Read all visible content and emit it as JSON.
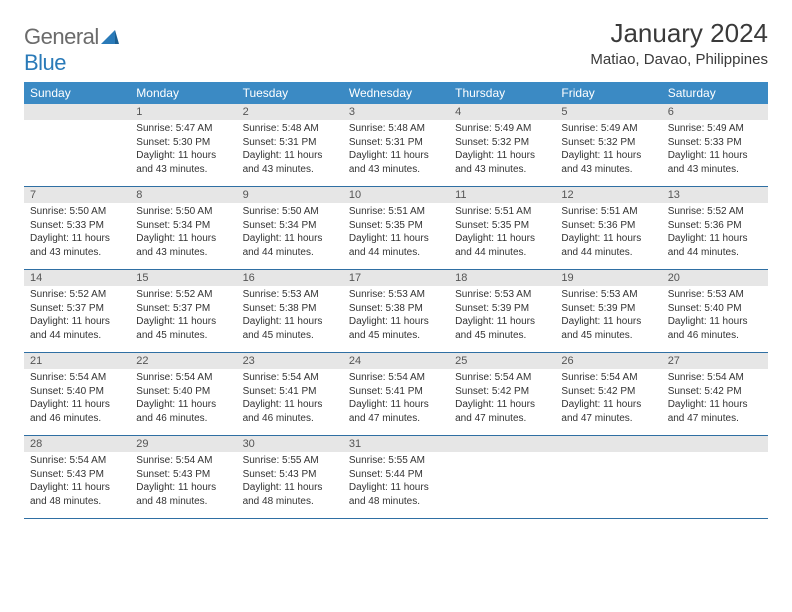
{
  "brand": {
    "text_gray": "General",
    "text_blue": "Blue"
  },
  "title": "January 2024",
  "location": "Matiao, Davao, Philippines",
  "colors": {
    "header_bg": "#3b8ac4",
    "header_text": "#ffffff",
    "daynum_bg": "#e6e6e6",
    "row_border": "#2f6fa3",
    "body_text": "#333333",
    "logo_gray": "#6b6b6b",
    "logo_blue": "#2a7ab8",
    "page_bg": "#ffffff"
  },
  "typography": {
    "title_fontsize": 26,
    "location_fontsize": 15,
    "dayheader_fontsize": 12,
    "daynum_fontsize": 11,
    "body_fontsize": 10
  },
  "day_labels": [
    "Sunday",
    "Monday",
    "Tuesday",
    "Wednesday",
    "Thursday",
    "Friday",
    "Saturday"
  ],
  "weeks": [
    [
      {
        "num": "",
        "sunrise": "",
        "sunset": "",
        "daylight": ""
      },
      {
        "num": "1",
        "sunrise": "Sunrise: 5:47 AM",
        "sunset": "Sunset: 5:30 PM",
        "daylight": "Daylight: 11 hours and 43 minutes."
      },
      {
        "num": "2",
        "sunrise": "Sunrise: 5:48 AM",
        "sunset": "Sunset: 5:31 PM",
        "daylight": "Daylight: 11 hours and 43 minutes."
      },
      {
        "num": "3",
        "sunrise": "Sunrise: 5:48 AM",
        "sunset": "Sunset: 5:31 PM",
        "daylight": "Daylight: 11 hours and 43 minutes."
      },
      {
        "num": "4",
        "sunrise": "Sunrise: 5:49 AM",
        "sunset": "Sunset: 5:32 PM",
        "daylight": "Daylight: 11 hours and 43 minutes."
      },
      {
        "num": "5",
        "sunrise": "Sunrise: 5:49 AM",
        "sunset": "Sunset: 5:32 PM",
        "daylight": "Daylight: 11 hours and 43 minutes."
      },
      {
        "num": "6",
        "sunrise": "Sunrise: 5:49 AM",
        "sunset": "Sunset: 5:33 PM",
        "daylight": "Daylight: 11 hours and 43 minutes."
      }
    ],
    [
      {
        "num": "7",
        "sunrise": "Sunrise: 5:50 AM",
        "sunset": "Sunset: 5:33 PM",
        "daylight": "Daylight: 11 hours and 43 minutes."
      },
      {
        "num": "8",
        "sunrise": "Sunrise: 5:50 AM",
        "sunset": "Sunset: 5:34 PM",
        "daylight": "Daylight: 11 hours and 43 minutes."
      },
      {
        "num": "9",
        "sunrise": "Sunrise: 5:50 AM",
        "sunset": "Sunset: 5:34 PM",
        "daylight": "Daylight: 11 hours and 44 minutes."
      },
      {
        "num": "10",
        "sunrise": "Sunrise: 5:51 AM",
        "sunset": "Sunset: 5:35 PM",
        "daylight": "Daylight: 11 hours and 44 minutes."
      },
      {
        "num": "11",
        "sunrise": "Sunrise: 5:51 AM",
        "sunset": "Sunset: 5:35 PM",
        "daylight": "Daylight: 11 hours and 44 minutes."
      },
      {
        "num": "12",
        "sunrise": "Sunrise: 5:51 AM",
        "sunset": "Sunset: 5:36 PM",
        "daylight": "Daylight: 11 hours and 44 minutes."
      },
      {
        "num": "13",
        "sunrise": "Sunrise: 5:52 AM",
        "sunset": "Sunset: 5:36 PM",
        "daylight": "Daylight: 11 hours and 44 minutes."
      }
    ],
    [
      {
        "num": "14",
        "sunrise": "Sunrise: 5:52 AM",
        "sunset": "Sunset: 5:37 PM",
        "daylight": "Daylight: 11 hours and 44 minutes."
      },
      {
        "num": "15",
        "sunrise": "Sunrise: 5:52 AM",
        "sunset": "Sunset: 5:37 PM",
        "daylight": "Daylight: 11 hours and 45 minutes."
      },
      {
        "num": "16",
        "sunrise": "Sunrise: 5:53 AM",
        "sunset": "Sunset: 5:38 PM",
        "daylight": "Daylight: 11 hours and 45 minutes."
      },
      {
        "num": "17",
        "sunrise": "Sunrise: 5:53 AM",
        "sunset": "Sunset: 5:38 PM",
        "daylight": "Daylight: 11 hours and 45 minutes."
      },
      {
        "num": "18",
        "sunrise": "Sunrise: 5:53 AM",
        "sunset": "Sunset: 5:39 PM",
        "daylight": "Daylight: 11 hours and 45 minutes."
      },
      {
        "num": "19",
        "sunrise": "Sunrise: 5:53 AM",
        "sunset": "Sunset: 5:39 PM",
        "daylight": "Daylight: 11 hours and 45 minutes."
      },
      {
        "num": "20",
        "sunrise": "Sunrise: 5:53 AM",
        "sunset": "Sunset: 5:40 PM",
        "daylight": "Daylight: 11 hours and 46 minutes."
      }
    ],
    [
      {
        "num": "21",
        "sunrise": "Sunrise: 5:54 AM",
        "sunset": "Sunset: 5:40 PM",
        "daylight": "Daylight: 11 hours and 46 minutes."
      },
      {
        "num": "22",
        "sunrise": "Sunrise: 5:54 AM",
        "sunset": "Sunset: 5:40 PM",
        "daylight": "Daylight: 11 hours and 46 minutes."
      },
      {
        "num": "23",
        "sunrise": "Sunrise: 5:54 AM",
        "sunset": "Sunset: 5:41 PM",
        "daylight": "Daylight: 11 hours and 46 minutes."
      },
      {
        "num": "24",
        "sunrise": "Sunrise: 5:54 AM",
        "sunset": "Sunset: 5:41 PM",
        "daylight": "Daylight: 11 hours and 47 minutes."
      },
      {
        "num": "25",
        "sunrise": "Sunrise: 5:54 AM",
        "sunset": "Sunset: 5:42 PM",
        "daylight": "Daylight: 11 hours and 47 minutes."
      },
      {
        "num": "26",
        "sunrise": "Sunrise: 5:54 AM",
        "sunset": "Sunset: 5:42 PM",
        "daylight": "Daylight: 11 hours and 47 minutes."
      },
      {
        "num": "27",
        "sunrise": "Sunrise: 5:54 AM",
        "sunset": "Sunset: 5:42 PM",
        "daylight": "Daylight: 11 hours and 47 minutes."
      }
    ],
    [
      {
        "num": "28",
        "sunrise": "Sunrise: 5:54 AM",
        "sunset": "Sunset: 5:43 PM",
        "daylight": "Daylight: 11 hours and 48 minutes."
      },
      {
        "num": "29",
        "sunrise": "Sunrise: 5:54 AM",
        "sunset": "Sunset: 5:43 PM",
        "daylight": "Daylight: 11 hours and 48 minutes."
      },
      {
        "num": "30",
        "sunrise": "Sunrise: 5:55 AM",
        "sunset": "Sunset: 5:43 PM",
        "daylight": "Daylight: 11 hours and 48 minutes."
      },
      {
        "num": "31",
        "sunrise": "Sunrise: 5:55 AM",
        "sunset": "Sunset: 5:44 PM",
        "daylight": "Daylight: 11 hours and 48 minutes."
      },
      {
        "num": "",
        "sunrise": "",
        "sunset": "",
        "daylight": ""
      },
      {
        "num": "",
        "sunrise": "",
        "sunset": "",
        "daylight": ""
      },
      {
        "num": "",
        "sunrise": "",
        "sunset": "",
        "daylight": ""
      }
    ]
  ]
}
